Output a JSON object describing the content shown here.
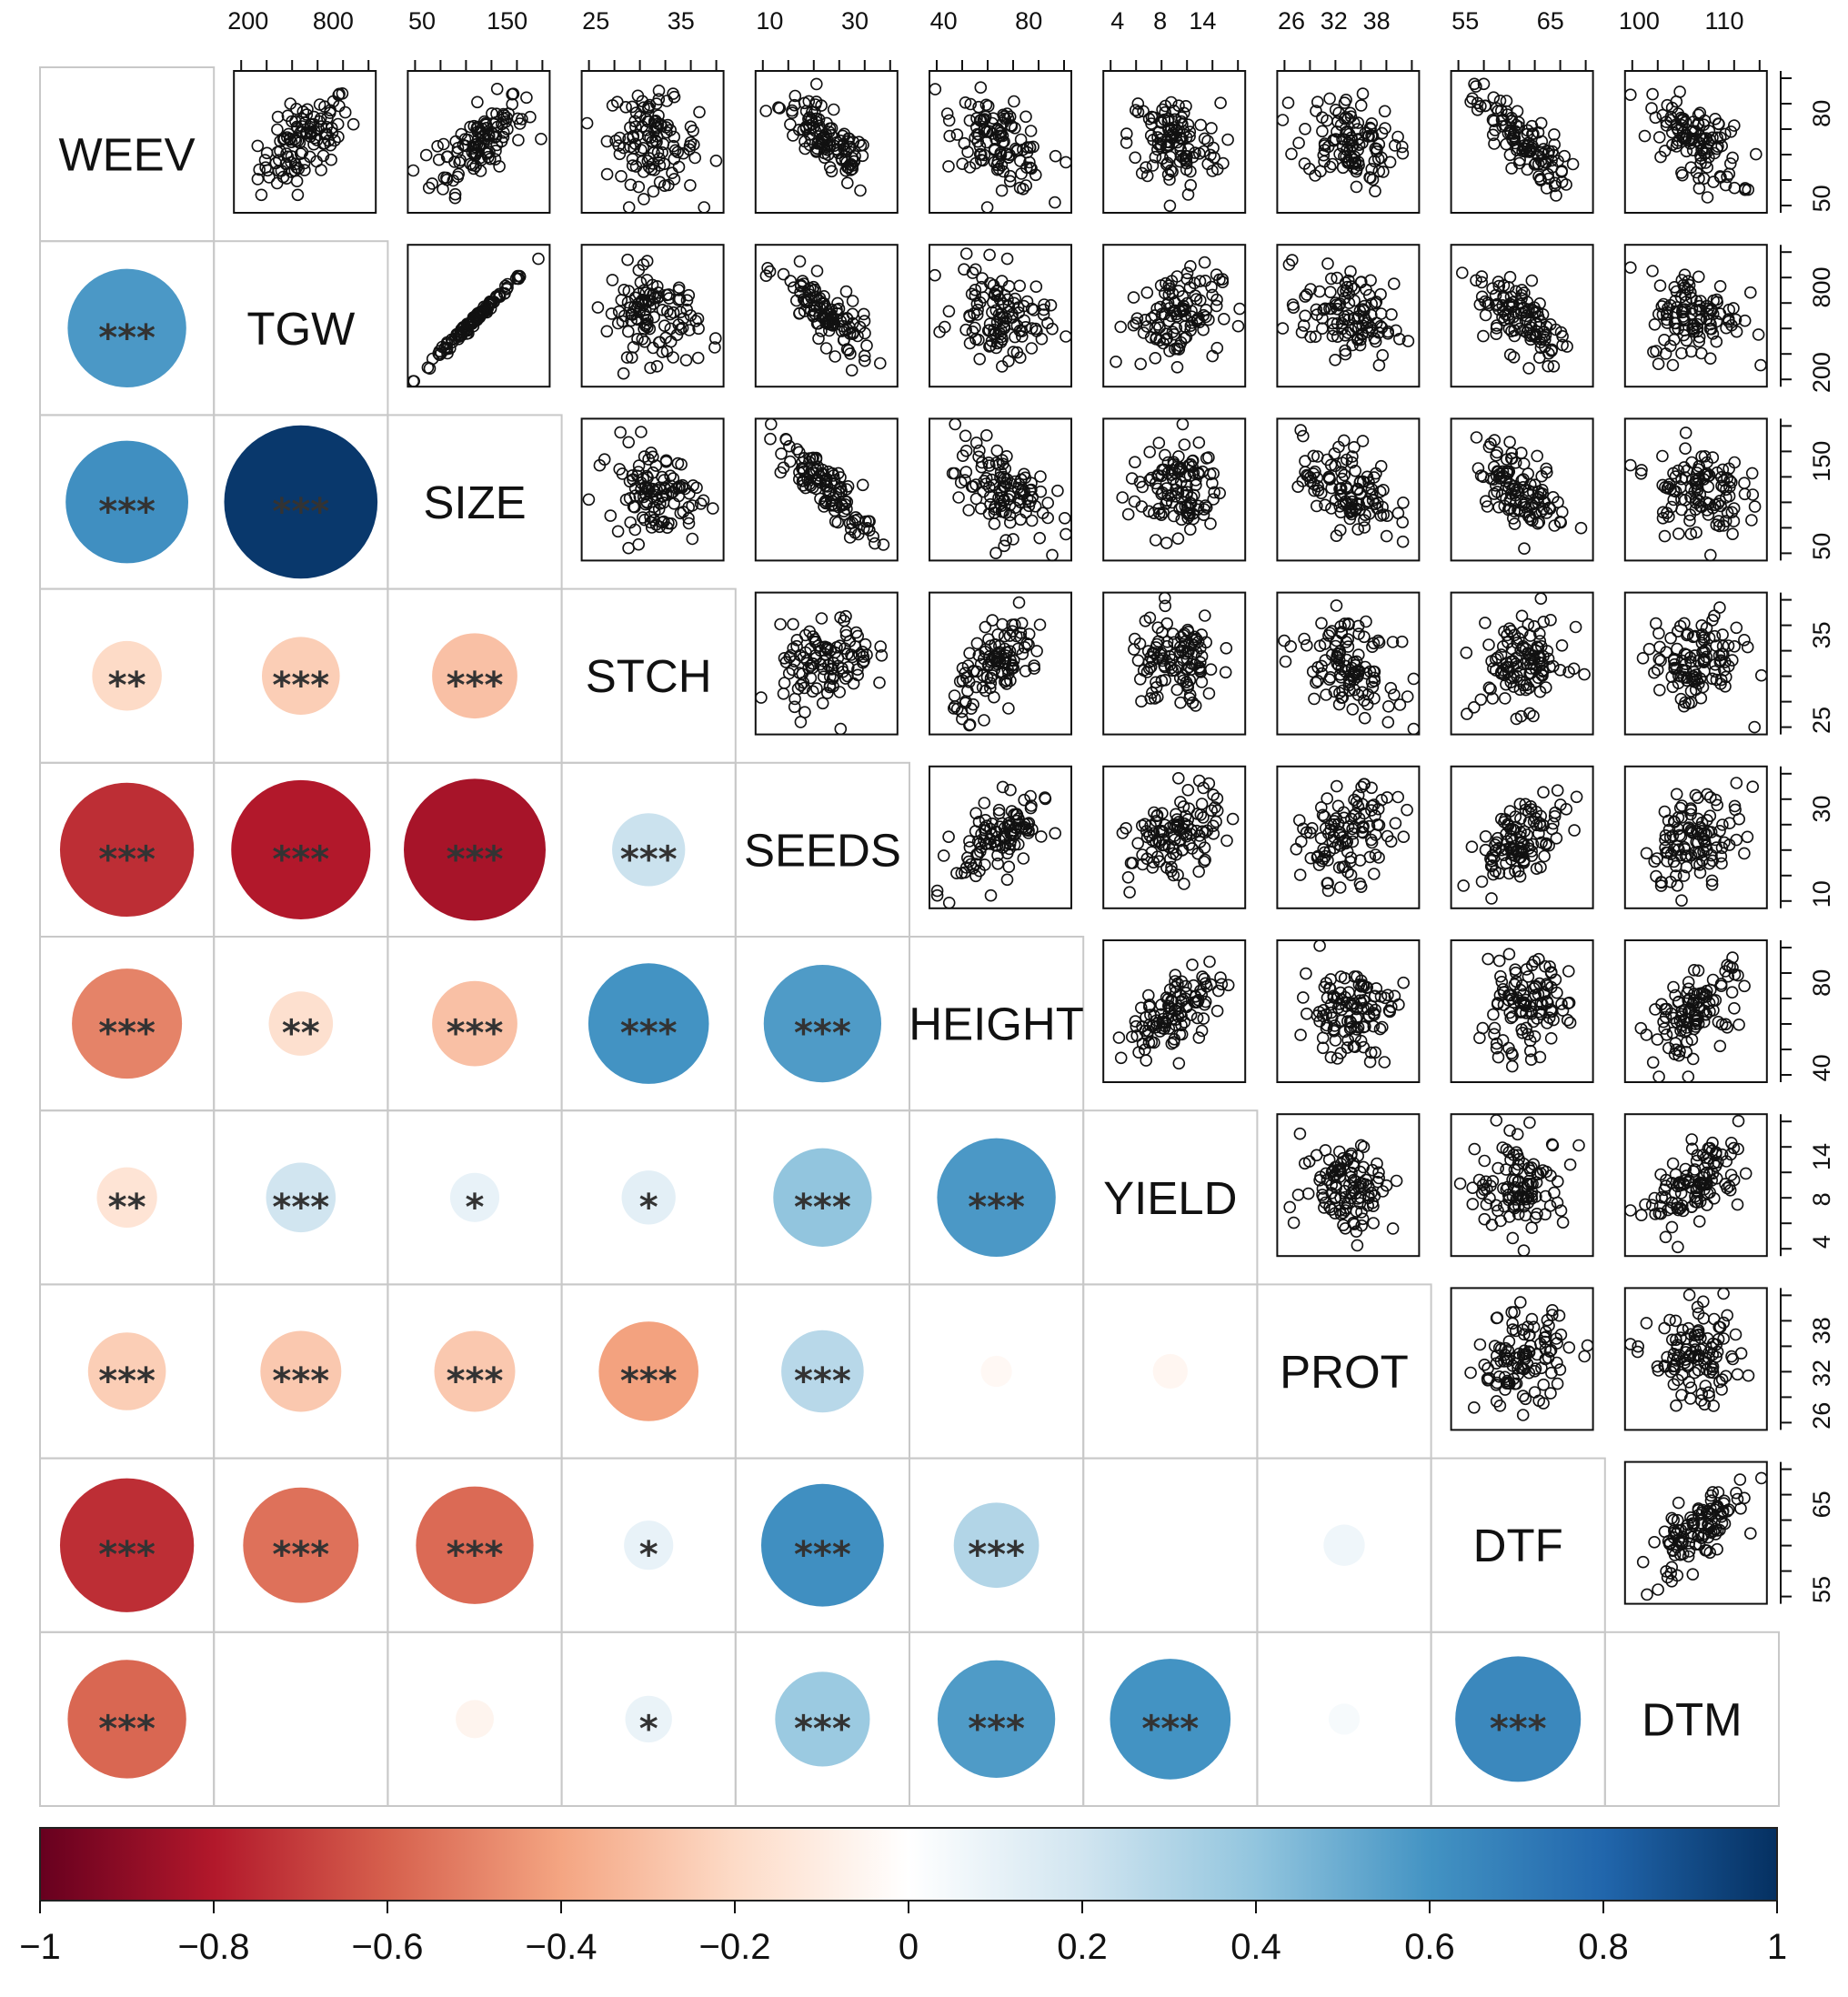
{
  "chart_data": {
    "type": "correlation-matrix",
    "variables": [
      "WEEV",
      "TGW",
      "SIZE",
      "STCH",
      "SEEDS",
      "HEIGHT",
      "YIELD",
      "PROT",
      "DTF",
      "DTM"
    ],
    "top_ticks": [
      [
        "200",
        "800"
      ],
      [
        "50",
        "150"
      ],
      [
        "25",
        "35"
      ],
      [
        "10",
        "30"
      ],
      [
        "40",
        "80"
      ],
      [
        "4",
        "8",
        "14"
      ],
      [
        "26",
        "32",
        "38"
      ],
      [
        "55",
        "65"
      ],
      [
        "100",
        "110"
      ]
    ],
    "right_ticks": [
      [
        "50",
        "80"
      ],
      [
        "200",
        "800"
      ],
      [
        "50",
        "150"
      ],
      [
        "25",
        "35"
      ],
      [
        "10",
        "30"
      ],
      [
        "40",
        "80"
      ],
      [
        "4",
        "8",
        "14"
      ],
      [
        "26",
        "32",
        "38"
      ],
      [
        "55",
        "65"
      ]
    ],
    "lower_triangle": [
      {
        "row": "TGW",
        "col": "WEEV",
        "r": 0.58,
        "stars": "***"
      },
      {
        "row": "SIZE",
        "col": "WEEV",
        "r": 0.62,
        "stars": "***"
      },
      {
        "row": "SIZE",
        "col": "TGW",
        "r": 0.97,
        "stars": "***"
      },
      {
        "row": "STCH",
        "col": "WEEV",
        "r": -0.2,
        "stars": "**"
      },
      {
        "row": "STCH",
        "col": "TGW",
        "r": -0.25,
        "stars": "***"
      },
      {
        "row": "STCH",
        "col": "SIZE",
        "r": -0.3,
        "stars": "***"
      },
      {
        "row": "SEEDS",
        "col": "WEEV",
        "r": -0.74,
        "stars": "***"
      },
      {
        "row": "SEEDS",
        "col": "TGW",
        "r": -0.8,
        "stars": "***"
      },
      {
        "row": "SEEDS",
        "col": "SIZE",
        "r": -0.83,
        "stars": "***"
      },
      {
        "row": "SEEDS",
        "col": "STCH",
        "r": 0.22,
        "stars": "***"
      },
      {
        "row": "HEIGHT",
        "col": "WEEV",
        "r": -0.5,
        "stars": "***"
      },
      {
        "row": "HEIGHT",
        "col": "TGW",
        "r": -0.17,
        "stars": "**"
      },
      {
        "row": "HEIGHT",
        "col": "SIZE",
        "r": -0.3,
        "stars": "***"
      },
      {
        "row": "HEIGHT",
        "col": "STCH",
        "r": 0.6,
        "stars": "***"
      },
      {
        "row": "HEIGHT",
        "col": "SEEDS",
        "r": 0.57,
        "stars": "***"
      },
      {
        "row": "YIELD",
        "col": "WEEV",
        "r": -0.15,
        "stars": "**"
      },
      {
        "row": "YIELD",
        "col": "TGW",
        "r": 0.2,
        "stars": "***"
      },
      {
        "row": "YIELD",
        "col": "SIZE",
        "r": 0.1,
        "stars": "*"
      },
      {
        "row": "YIELD",
        "col": "STCH",
        "r": 0.12,
        "stars": "*"
      },
      {
        "row": "YIELD",
        "col": "SEEDS",
        "r": 0.4,
        "stars": "***"
      },
      {
        "row": "YIELD",
        "col": "HEIGHT",
        "r": 0.58,
        "stars": "***"
      },
      {
        "row": "PROT",
        "col": "WEEV",
        "r": -0.25,
        "stars": "***"
      },
      {
        "row": "PROT",
        "col": "TGW",
        "r": -0.27,
        "stars": "***"
      },
      {
        "row": "PROT",
        "col": "SIZE",
        "r": -0.27,
        "stars": "***"
      },
      {
        "row": "PROT",
        "col": "STCH",
        "r": -0.41,
        "stars": "***"
      },
      {
        "row": "PROT",
        "col": "SEEDS",
        "r": 0.28,
        "stars": "***"
      },
      {
        "row": "PROT",
        "col": "HEIGHT",
        "r": -0.04,
        "stars": ""
      },
      {
        "row": "PROT",
        "col": "YIELD",
        "r": -0.05,
        "stars": ""
      },
      {
        "row": "DTF",
        "col": "WEEV",
        "r": -0.74,
        "stars": "***"
      },
      {
        "row": "DTF",
        "col": "TGW",
        "r": -0.55,
        "stars": "***"
      },
      {
        "row": "DTF",
        "col": "SIZE",
        "r": -0.57,
        "stars": "***"
      },
      {
        "row": "DTF",
        "col": "STCH",
        "r": 0.1,
        "stars": "*"
      },
      {
        "row": "DTF",
        "col": "SEEDS",
        "r": 0.62,
        "stars": "***"
      },
      {
        "row": "DTF",
        "col": "HEIGHT",
        "r": 0.3,
        "stars": "***"
      },
      {
        "row": "DTF",
        "col": "PROT",
        "r": 0.07,
        "stars": ""
      },
      {
        "row": "DTM",
        "col": "WEEV",
        "r": -0.58,
        "stars": "***"
      },
      {
        "row": "DTM",
        "col": "SIZE",
        "r": -0.06,
        "stars": ""
      },
      {
        "row": "DTM",
        "col": "STCH",
        "r": 0.09,
        "stars": "*"
      },
      {
        "row": "DTM",
        "col": "SEEDS",
        "r": 0.37,
        "stars": "***"
      },
      {
        "row": "DTM",
        "col": "HEIGHT",
        "r": 0.57,
        "stars": "***"
      },
      {
        "row": "DTM",
        "col": "YIELD",
        "r": 0.6,
        "stars": "***"
      },
      {
        "row": "DTM",
        "col": "PROT",
        "r": 0.04,
        "stars": ""
      },
      {
        "row": "DTM",
        "col": "DTF",
        "r": 0.65,
        "stars": "***"
      }
    ],
    "colorbar": {
      "ticks": [
        "−1",
        "−0.8",
        "−0.6",
        "−0.4",
        "−0.2",
        "0",
        "0.2",
        "0.4",
        "0.6",
        "0.8",
        "1"
      ],
      "range": [
        -1,
        1
      ]
    }
  }
}
